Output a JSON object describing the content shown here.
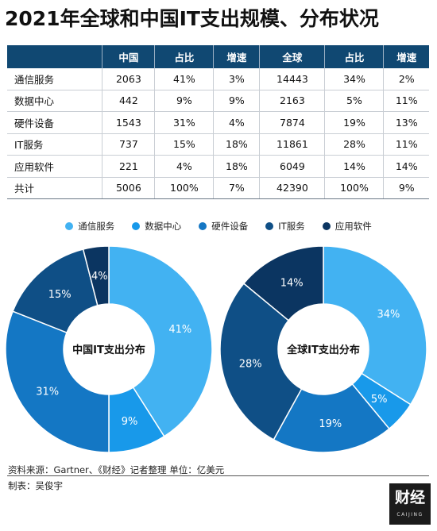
{
  "title": "2021年全球和中国IT支出规模、分布状况",
  "table": {
    "headers": [
      "",
      "中国",
      "占比",
      "增速",
      "全球",
      "占比",
      "增速"
    ],
    "rows": [
      [
        "通信服务",
        "2063",
        "41%",
        "3%",
        "14443",
        "34%",
        "2%"
      ],
      [
        "数据中心",
        "442",
        "9%",
        "9%",
        "2163",
        "5%",
        "11%"
      ],
      [
        "硬件设备",
        "1543",
        "31%",
        "4%",
        "7874",
        "19%",
        "13%"
      ],
      [
        "IT服务",
        "737",
        "15%",
        "18%",
        "11861",
        "28%",
        "11%"
      ],
      [
        "应用软件",
        "221",
        "4%",
        "18%",
        "6049",
        "14%",
        "14%"
      ],
      [
        "共计",
        "5006",
        "100%",
        "7%",
        "42390",
        "100%",
        "9%"
      ]
    ]
  },
  "legend": [
    {
      "label": "通信服务",
      "color": "#42b2f2"
    },
    {
      "label": "数据中心",
      "color": "#1899ea"
    },
    {
      "label": "硬件设备",
      "color": "#1477c4"
    },
    {
      "label": "IT服务",
      "color": "#0f4f86"
    },
    {
      "label": "应用软件",
      "color": "#0b3561"
    }
  ],
  "chart_data": [
    {
      "type": "pie",
      "title": "中国IT支出分布",
      "categories": [
        "通信服务",
        "数据中心",
        "硬件设备",
        "IT服务",
        "应用软件"
      ],
      "values": [
        41,
        9,
        31,
        15,
        4
      ],
      "labels": [
        "41%",
        "9%",
        "31%",
        "15%",
        "4%"
      ],
      "colors": [
        "#42b2f2",
        "#1899ea",
        "#1477c4",
        "#0f4f86",
        "#0b3561"
      ]
    },
    {
      "type": "pie",
      "title": "全球IT支出分布",
      "categories": [
        "通信服务",
        "数据中心",
        "硬件设备",
        "IT服务",
        "应用软件"
      ],
      "values": [
        34,
        5,
        19,
        28,
        14
      ],
      "labels": [
        "34%",
        "5%",
        "19%",
        "28%",
        "14%"
      ],
      "colors": [
        "#42b2f2",
        "#1899ea",
        "#1477c4",
        "#0f4f86",
        "#0b3561"
      ]
    }
  ],
  "footer": {
    "source": "资料来源：Gartner、《财经》记者整理     单位：亿美元",
    "author": "制表：吴俊宇"
  },
  "logo": {
    "main": "财经",
    "sub": "CAIJING"
  }
}
